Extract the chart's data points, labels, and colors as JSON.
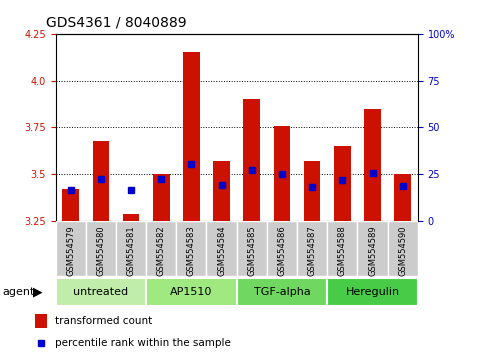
{
  "title": "GDS4361 / 8040889",
  "samples": [
    "GSM554579",
    "GSM554580",
    "GSM554581",
    "GSM554582",
    "GSM554583",
    "GSM554584",
    "GSM554585",
    "GSM554586",
    "GSM554587",
    "GSM554588",
    "GSM554589",
    "GSM554590"
  ],
  "red_values": [
    3.42,
    3.68,
    3.29,
    3.5,
    4.15,
    3.57,
    3.9,
    3.76,
    3.57,
    3.65,
    3.85,
    3.5
  ],
  "blue_values": [
    3.415,
    3.475,
    3.415,
    3.475,
    3.555,
    3.445,
    3.525,
    3.5,
    3.43,
    3.47,
    3.505,
    3.44
  ],
  "y_min": 3.25,
  "y_max": 4.25,
  "y_ticks_left": [
    3.25,
    3.5,
    3.75,
    4.0,
    4.25
  ],
  "y_ticks_right": [
    0,
    25,
    50,
    75,
    100
  ],
  "groups": [
    {
      "label": "untreated",
      "start": 0,
      "end": 3
    },
    {
      "label": "AP1510",
      "start": 3,
      "end": 6
    },
    {
      "label": "TGF-alpha",
      "start": 6,
      "end": 9
    },
    {
      "label": "Heregulin",
      "start": 9,
      "end": 12
    }
  ],
  "group_colors": [
    "#c0eeaa",
    "#a0e880",
    "#70d860",
    "#48cc48"
  ],
  "agent_label": "agent",
  "bar_color": "#cc1100",
  "blue_color": "#0000cc",
  "bar_width": 0.55,
  "tick_label_bg": "#cccccc",
  "grid_color": "#000000",
  "left_tick_color": "#cc1100",
  "right_tick_color": "#0000cc",
  "title_fontsize": 10,
  "tick_fontsize": 7,
  "group_fontsize": 8,
  "legend_fontsize": 7.5
}
